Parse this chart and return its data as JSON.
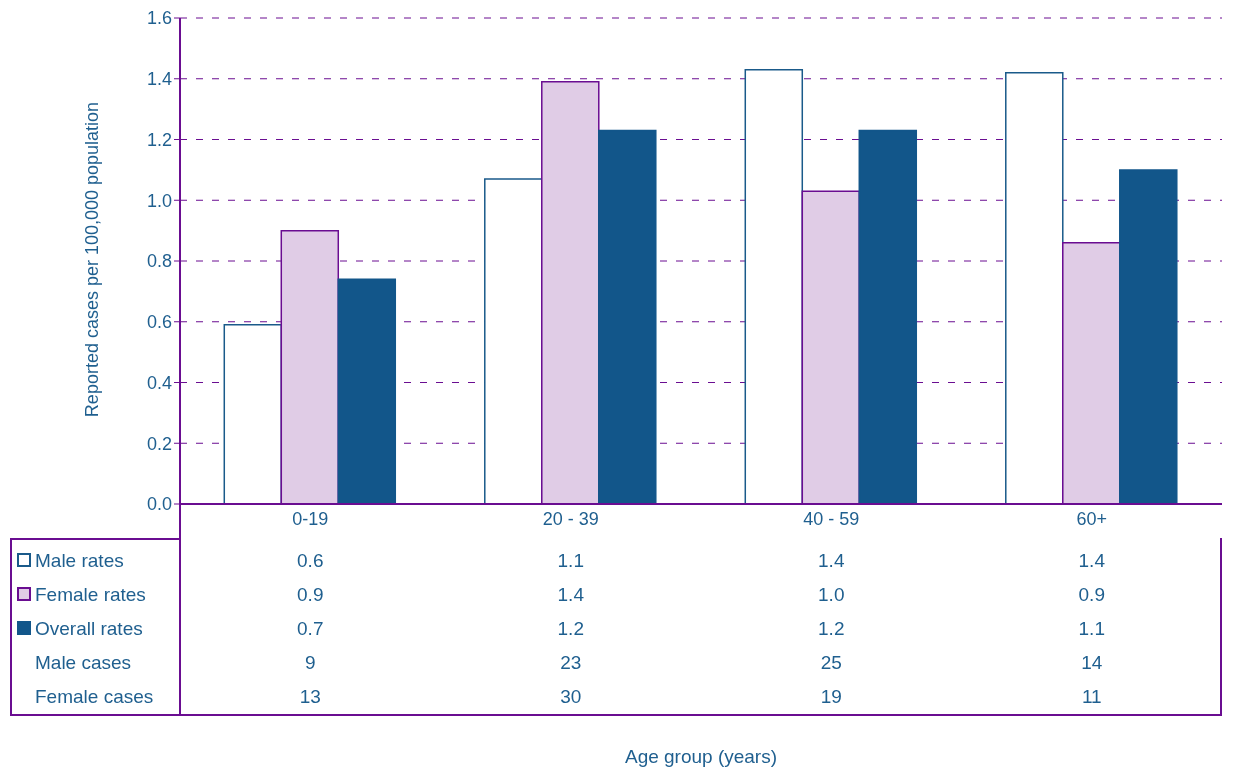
{
  "chart_data": {
    "type": "bar",
    "ylabel": "Reported cases per 100,000 population",
    "categories": [
      "0-19",
      "20 - 39",
      "40 - 59",
      "60+"
    ],
    "ylim": [
      0,
      1.6
    ],
    "yticks": [
      {
        "value": 0,
        "label": "0.0"
      },
      {
        "value": 0.2,
        "label": "0.2"
      },
      {
        "value": 0.4,
        "label": "0.4"
      },
      {
        "value": 0.6,
        "label": "0.6"
      },
      {
        "value": 0.8,
        "label": "0.8"
      },
      {
        "value": 1,
        "label": "1.0"
      },
      {
        "value": 1.2,
        "label": "1.2"
      },
      {
        "value": 1.4,
        "label": "1.4"
      },
      {
        "value": 1.6,
        "label": "1.6"
      }
    ],
    "grid": "y",
    "legend": "bottom left",
    "series": [
      {
        "name": "Male rates",
        "color": "#ffffff",
        "values": [
          0.59,
          1.07,
          1.43,
          1.42
        ],
        "value_labels": [
          "0.6",
          "1.1",
          "1.4",
          "1.4"
        ]
      },
      {
        "name": "Female rates",
        "color": "#e0cce6",
        "values": [
          0.9,
          1.39,
          1.03,
          0.86
        ],
        "value_labels": [
          "0.9",
          "1.4",
          "1.0",
          "0.9"
        ]
      },
      {
        "name": "Overall rates",
        "color": "#12568a",
        "values": [
          0.74,
          1.23,
          1.23,
          1.1
        ],
        "value_labels": [
          "0.7",
          "1.2",
          "1.2",
          "1.1"
        ]
      }
    ],
    "annotations": [
      "Male cases",
      "9",
      "23",
      "25",
      "14",
      "Female cases",
      "13",
      "30",
      "19",
      "11",
      "Age group (years)"
    ]
  }
}
